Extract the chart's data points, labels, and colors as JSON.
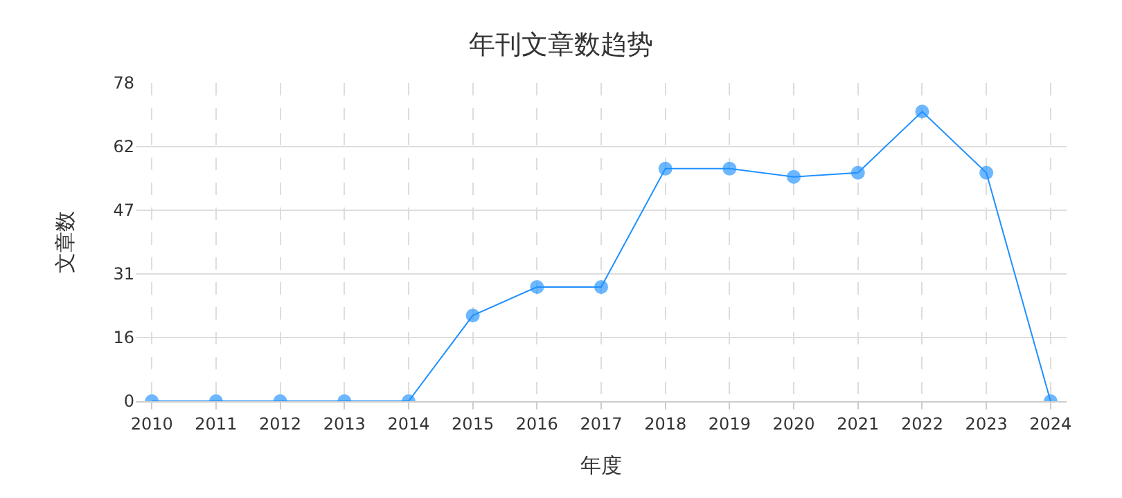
{
  "chart_data": {
    "type": "line",
    "title": "年刊文章数趋势",
    "xlabel": "年度",
    "ylabel": "文章数",
    "categories": [
      "2010",
      "2011",
      "2012",
      "2013",
      "2014",
      "2015",
      "2016",
      "2017",
      "2018",
      "2019",
      "2020",
      "2021",
      "2022",
      "2023",
      "2024"
    ],
    "series": [
      {
        "color": "#1e90ff",
        "values": [
          0,
          0,
          0,
          0,
          0,
          21,
          28,
          28,
          57,
          57,
          55,
          56,
          71,
          56,
          0
        ]
      }
    ],
    "ylim": [
      0,
      78
    ],
    "yticks": [
      0,
      {
        "value": 15.6,
        "label": "16"
      },
      {
        "value": 31.2,
        "label": "31"
      },
      {
        "value": 46.8,
        "label": "47"
      },
      {
        "value": 62.4,
        "label": "62"
      },
      78
    ],
    "grid": true,
    "marker": "circle",
    "line_style": "solid"
  }
}
